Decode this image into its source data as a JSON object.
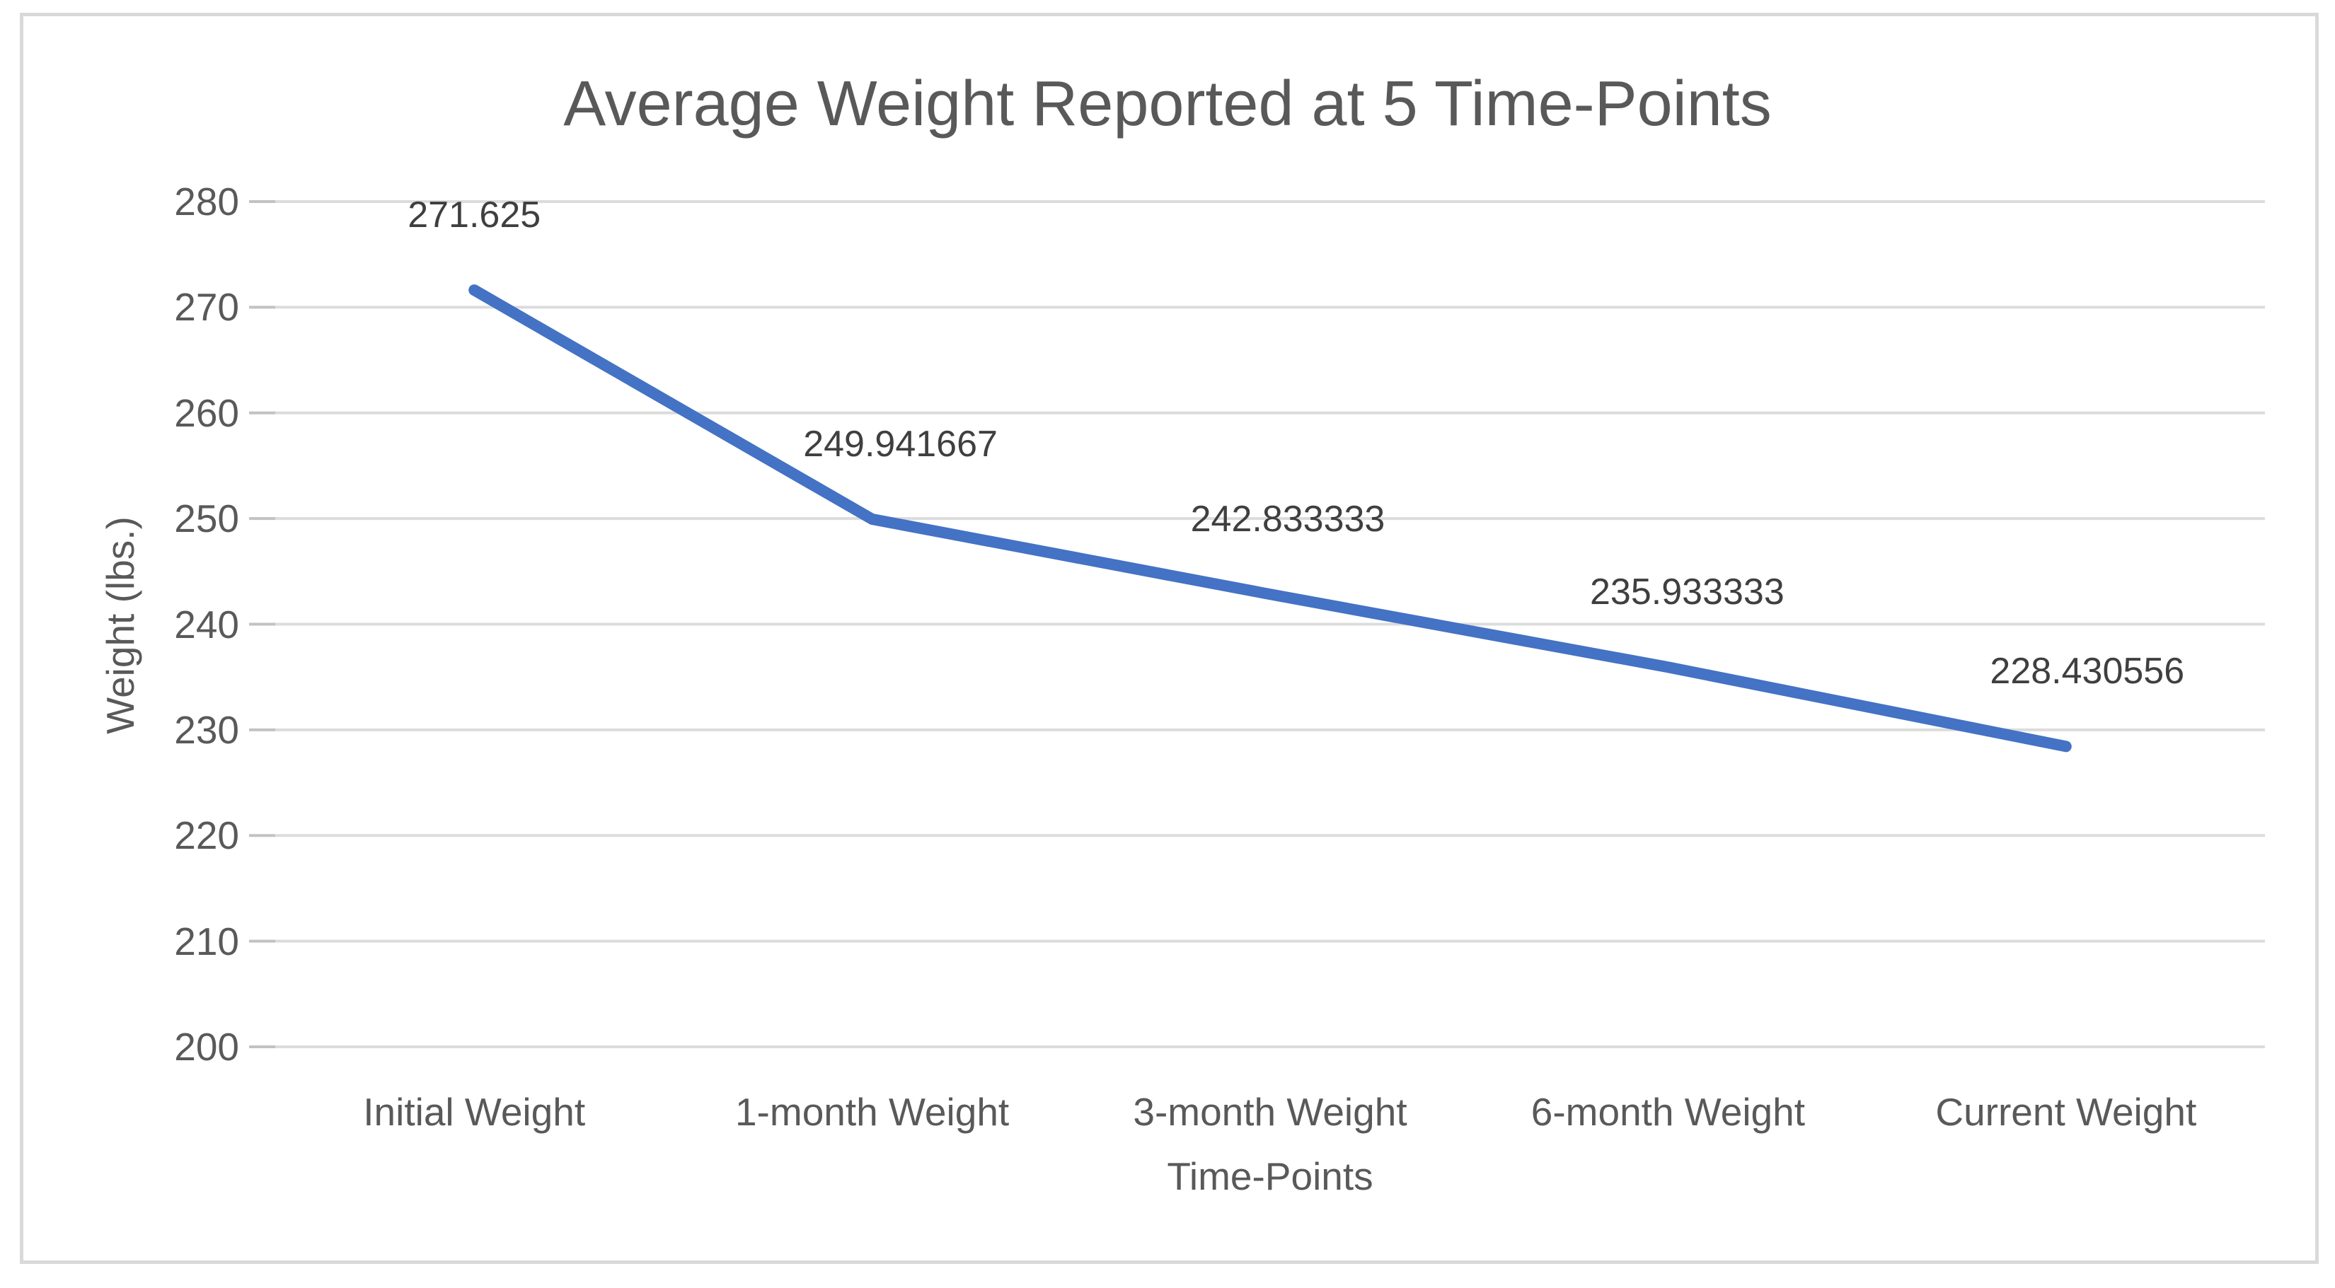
{
  "chart_data": {
    "type": "line",
    "title": "Average Weight Reported at 5 Time-Points",
    "xlabel": "Time-Points",
    "ylabel": "Weight (lbs.)",
    "categories": [
      "Initial Weight",
      "1-month Weight",
      "3-month Weight",
      "6-month Weight",
      "Current Weight"
    ],
    "values": [
      271.625,
      249.941667,
      242.833333,
      235.933333,
      228.430556
    ],
    "data_labels": [
      "271.625",
      "249.941667",
      "242.833333",
      "235.933333",
      "228.430556"
    ],
    "ylim": [
      200,
      280
    ],
    "ytick_interval": 10,
    "yticks": [
      "280",
      "270",
      "260",
      "250",
      "240",
      "230",
      "220",
      "210",
      "200"
    ],
    "grid": "horizontal",
    "legend": "none"
  },
  "colors": {
    "line": "#4472c4",
    "gridline": "#dcdcdc",
    "tick_mark": "#c2c2c2",
    "frame_border": "#d9d9d9",
    "axis_text": "#595959",
    "data_label_text": "#3f3f3f",
    "background": "#ffffff"
  }
}
